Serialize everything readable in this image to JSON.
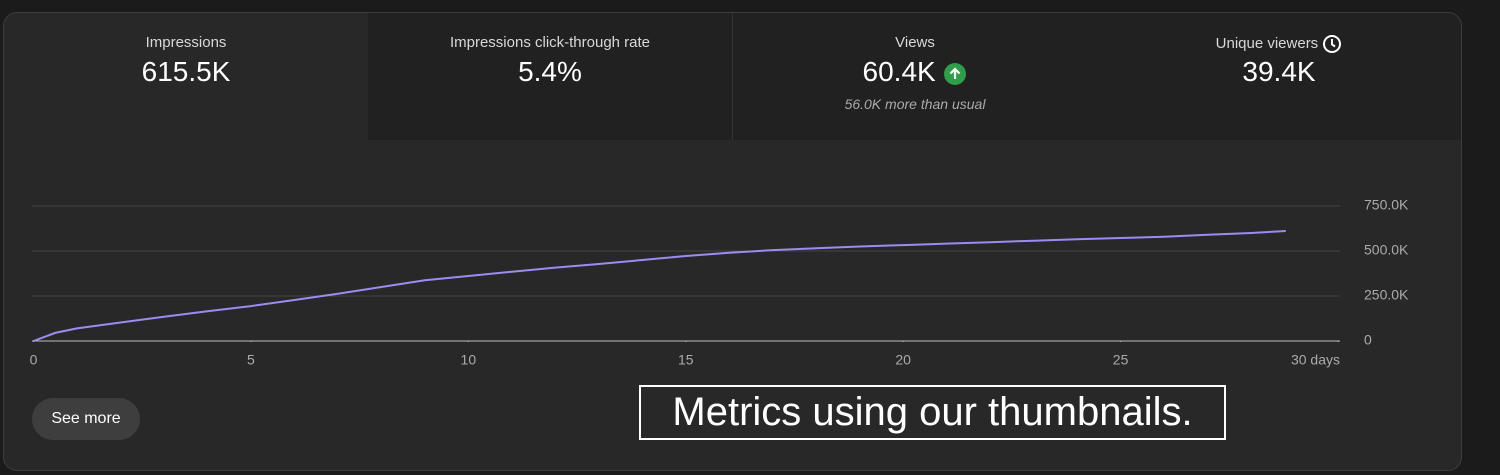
{
  "metrics": [
    {
      "title": "Impressions",
      "value": "615.5K"
    },
    {
      "title": "Impressions click-through rate",
      "value": "5.4%"
    },
    {
      "title": "Views",
      "value": "60.4K",
      "note": "56.0K more than usual"
    },
    {
      "title": "Unique viewers",
      "value": "39.4K"
    }
  ],
  "chart_data": {
    "type": "line",
    "color": "#9a8cf2",
    "x": [
      0,
      0.5,
      1,
      2,
      3,
      4,
      5,
      6,
      7,
      8,
      9,
      10,
      11,
      12,
      13,
      14,
      15,
      16,
      17,
      18,
      19,
      20,
      21,
      22,
      23,
      24,
      25,
      26,
      27,
      28,
      28.8
    ],
    "values": [
      0,
      45000,
      70000,
      103000,
      135000,
      165000,
      194000,
      228000,
      262000,
      300000,
      337000,
      361000,
      385000,
      408000,
      428000,
      450000,
      472000,
      490000,
      505000,
      515000,
      525000,
      533000,
      541000,
      549000,
      557000,
      565000,
      572000,
      579000,
      590000,
      600000,
      611000
    ],
    "xlim": [
      0,
      30
    ],
    "xticks": [
      0,
      5,
      10,
      15,
      20,
      25,
      {
        "value": 30,
        "label": "30 days"
      }
    ],
    "ylim": [
      0,
      750000
    ],
    "yticks": [
      0,
      {
        "value": 250000,
        "label": "250.0K"
      },
      {
        "value": 500000,
        "label": "500.0K"
      },
      {
        "value": 750000,
        "label": "750.0K"
      }
    ],
    "grid": true
  },
  "button": "See more",
  "caption": "Metrics using our thumbnails."
}
